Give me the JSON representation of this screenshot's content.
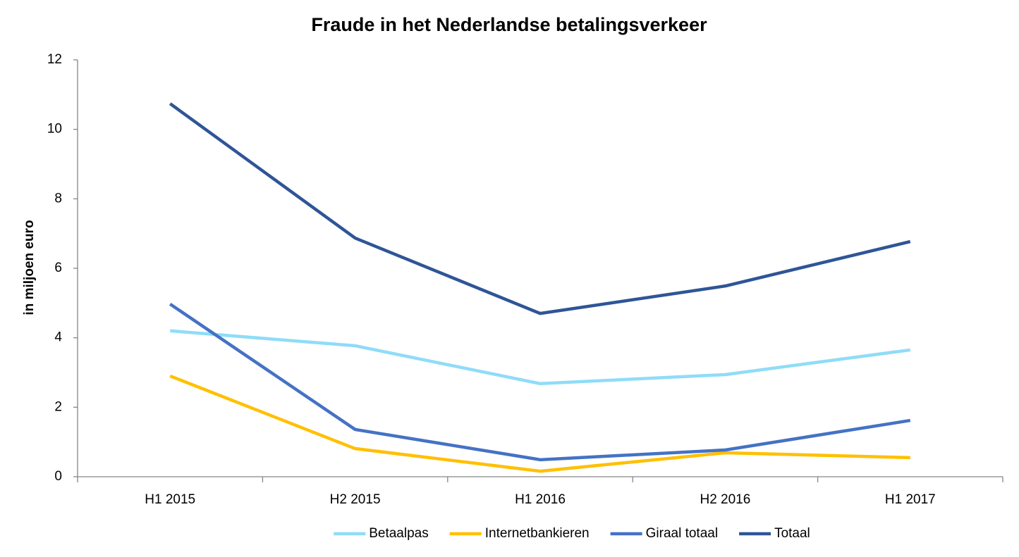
{
  "chart_data": {
    "type": "line",
    "title": "Fraude in het Nederlandse betalingsverkeer",
    "y_label": "in miljoen euro",
    "categories": [
      "H1 2015",
      "H2 2015",
      "H1 2016",
      "H2 2016",
      "H1 2017"
    ],
    "series": [
      {
        "name": "Betaalpas",
        "color": "#8fdcf8",
        "values": [
          4.2,
          3.77,
          2.68,
          2.94,
          3.65
        ]
      },
      {
        "name": "Internetbankieren",
        "color": "#ffc000",
        "values": [
          2.9,
          0.81,
          0.16,
          0.69,
          0.55
        ]
      },
      {
        "name": "Giraal totaal",
        "color": "#4472c4",
        "values": [
          4.97,
          1.36,
          0.49,
          0.77,
          1.62
        ]
      },
      {
        "name": "Totaal",
        "color": "#2f5597",
        "values": [
          10.74,
          6.87,
          4.7,
          5.49,
          6.77
        ]
      }
    ],
    "ylim": [
      0,
      12
    ],
    "yticks": [
      0,
      2,
      4,
      6,
      8,
      10,
      12
    ],
    "grid": false,
    "legend": "bottom"
  }
}
